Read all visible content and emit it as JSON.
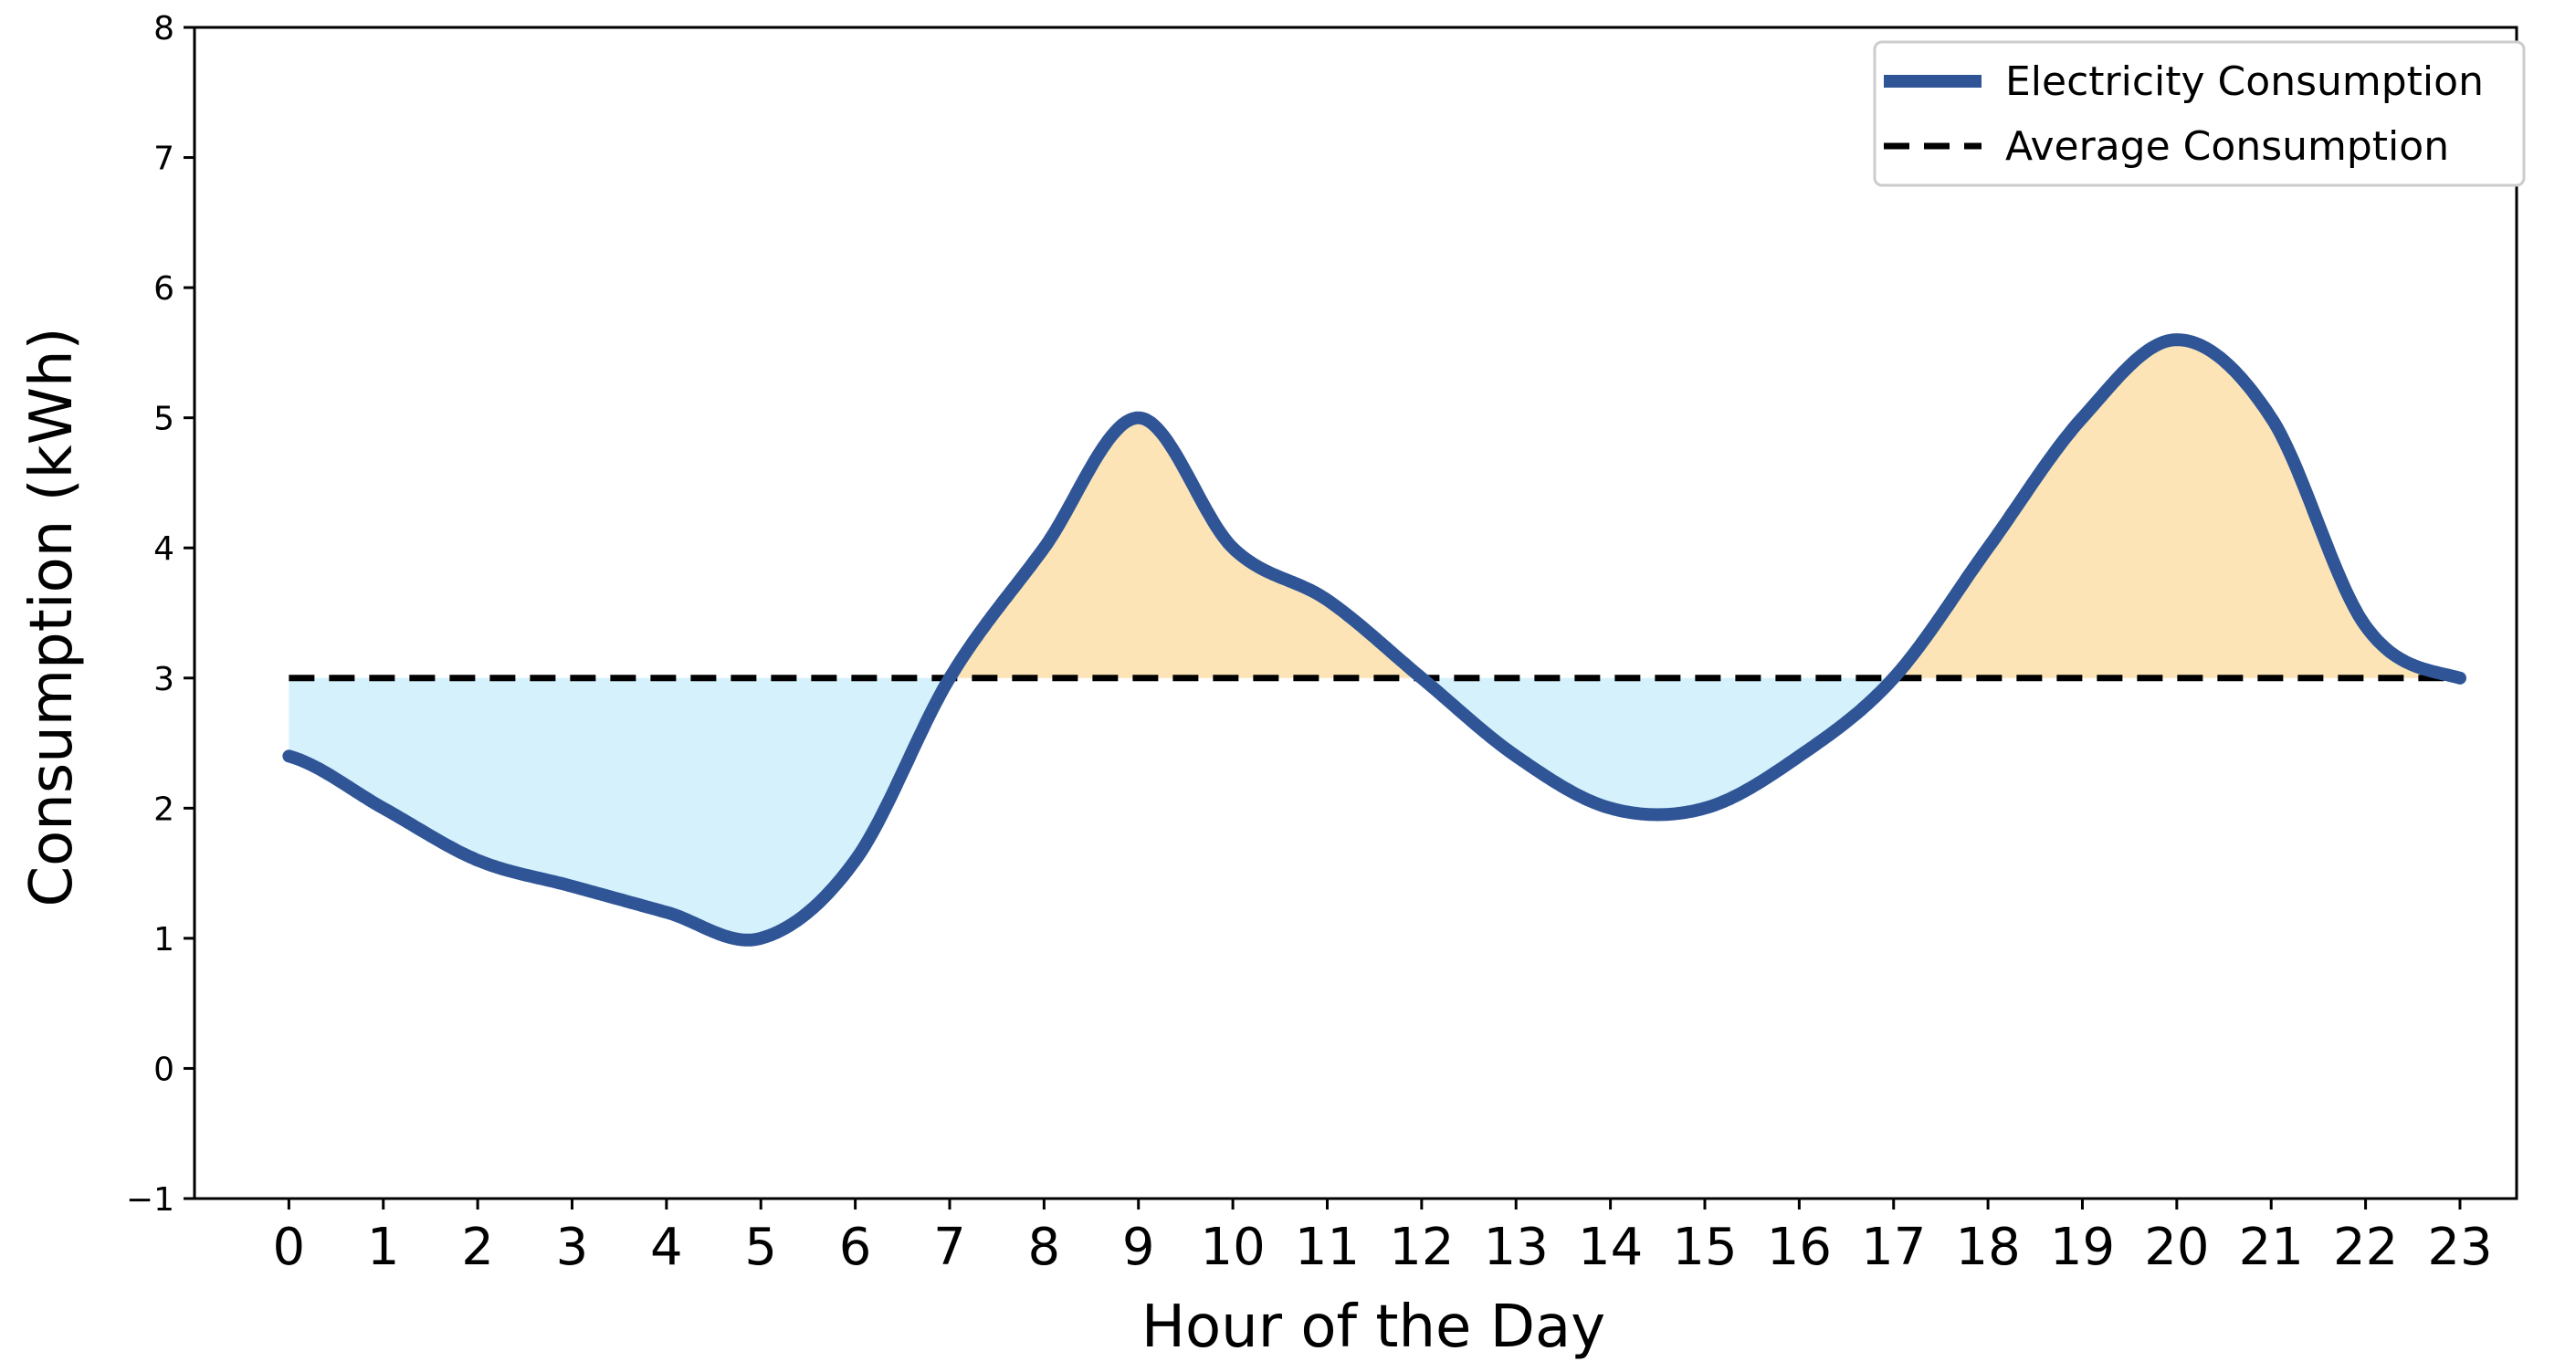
{
  "chart_data": {
    "type": "line",
    "title": "",
    "xlabel": "Hour of the Day",
    "ylabel": "Consumption (kWh)",
    "x": [
      0,
      1,
      2,
      3,
      4,
      5,
      6,
      7,
      8,
      9,
      10,
      11,
      12,
      13,
      14,
      15,
      16,
      17,
      18,
      19,
      20,
      21,
      22,
      23
    ],
    "x_tick_labels": [
      "0",
      "1",
      "2",
      "3",
      "4",
      "5",
      "6",
      "7",
      "8",
      "9",
      "10",
      "11",
      "12",
      "13",
      "14",
      "15",
      "16",
      "17",
      "18",
      "19",
      "20",
      "21",
      "22",
      "23"
    ],
    "xlim": [
      -1,
      23.6
    ],
    "ylim": [
      -1,
      8
    ],
    "y_ticks": [
      -1,
      0,
      1,
      2,
      3,
      4,
      5,
      6,
      7,
      8
    ],
    "y_tick_labels": [
      "−1",
      "0",
      "1",
      "2",
      "3",
      "4",
      "5",
      "6",
      "7",
      "8"
    ],
    "grid": false,
    "legend_position": "top-right",
    "series": [
      {
        "name": "Electricity Consumption",
        "style": "solid",
        "color": "#2f5597",
        "values": [
          2.4,
          2.0,
          1.6,
          1.4,
          1.2,
          1.0,
          1.6,
          3.0,
          4.0,
          5.0,
          4.0,
          3.6,
          3.0,
          2.4,
          2.0,
          2.0,
          2.4,
          3.0,
          4.0,
          5.0,
          5.6,
          5.0,
          3.4,
          3.0
        ]
      },
      {
        "name": "Average Consumption",
        "style": "dashed",
        "color": "#000000",
        "values": [
          3,
          3,
          3,
          3,
          3,
          3,
          3,
          3,
          3,
          3,
          3,
          3,
          3,
          3,
          3,
          3,
          3,
          3,
          3,
          3,
          3,
          3,
          3,
          3
        ]
      }
    ],
    "fill_above_color": "#fce4b6",
    "fill_below_color": "#d4f1fc"
  }
}
